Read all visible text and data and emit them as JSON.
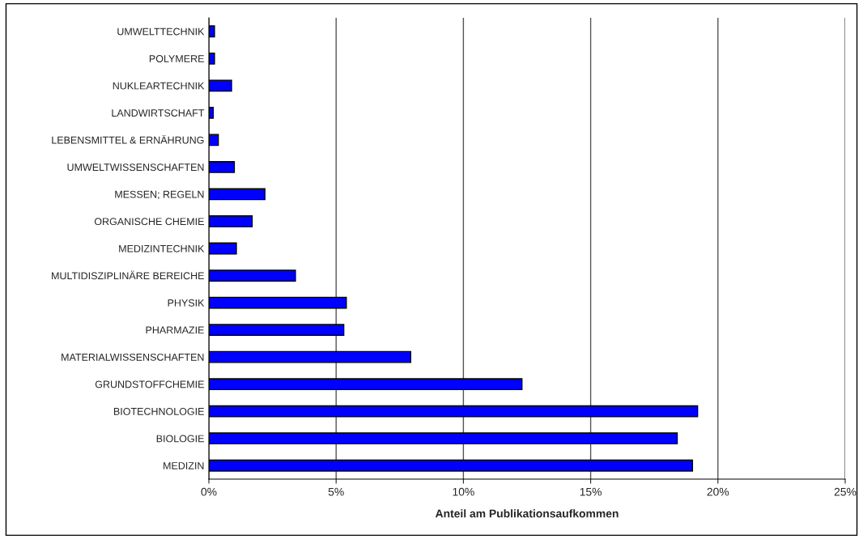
{
  "chart_data": {
    "type": "bar",
    "orientation": "horizontal",
    "xlabel": "Anteil am Publikationsaufkommen",
    "categories": [
      "UMWELTTECHNIK",
      "POLYMERE",
      "NUKLEARTECHNIK",
      "LANDWIRTSCHAFT",
      "LEBENSMITTEL & ERNÄHRUNG",
      "UMWELTWISSENSCHAFTEN",
      "MESSEN; REGELN",
      "ORGANISCHE CHEMIE",
      "MEDIZINTECHNIK",
      "MULTIDISZIPLINÄRE BEREICHE",
      "PHYSIK",
      "PHARMAZIE",
      "MATERIALWISSENSCHAFTEN",
      "GRUNDSTOFFCHEMIE",
      "BIOTECHNOLOGIE",
      "BIOLOGIE",
      "MEDIZIN"
    ],
    "values": [
      0.22,
      0.22,
      0.89,
      0.17,
      0.37,
      1.0,
      2.2,
      1.7,
      1.08,
      3.4,
      5.4,
      5.3,
      7.93,
      12.3,
      19.2,
      18.4,
      19.0
    ],
    "color": "#0000ff",
    "xlim": [
      0,
      25
    ],
    "xticks": [
      {
        "value": 0,
        "label": "0%"
      },
      {
        "value": 5,
        "label": "5%"
      },
      {
        "value": 10,
        "label": "10%"
      },
      {
        "value": 15,
        "label": "15%"
      },
      {
        "value": 20,
        "label": "20%"
      },
      {
        "value": 25,
        "label": "25%"
      }
    ],
    "grid": "x",
    "legend": false
  }
}
